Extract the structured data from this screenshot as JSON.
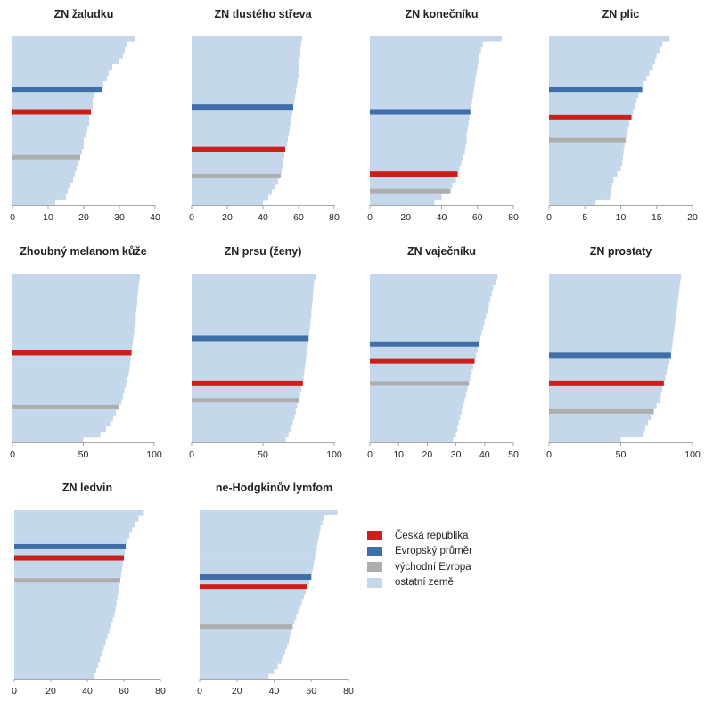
{
  "legend": [
    {
      "label": "Česká republika",
      "color": "#cc1f1a"
    },
    {
      "label": "Evropský průměr",
      "color": "#3f6fa9"
    },
    {
      "label": "východní Evropa",
      "color": "#adadad"
    },
    {
      "label": "ostatní země",
      "color": "#c5d8eb"
    }
  ],
  "chart_data": [
    {
      "type": "bar",
      "title": "ZN žaludku",
      "xlim": [
        0,
        40
      ],
      "ticks": [
        0,
        10,
        20,
        30,
        40
      ],
      "countries": [
        34.5,
        32,
        31.5,
        31,
        30,
        28,
        27,
        26.5,
        25.5,
        24,
        23,
        22.5,
        22.5,
        22,
        21.5,
        21.5,
        21,
        20.5,
        20,
        20,
        19.5,
        19,
        18.5,
        18,
        17.5,
        17,
        16,
        15.5,
        15,
        12
      ],
      "czech": 22,
      "europe": 25,
      "east": 19
    },
    {
      "type": "bar",
      "title": "ZN tlustého střeva",
      "xlim": [
        0,
        80
      ],
      "ticks": [
        0,
        20,
        40,
        60,
        80
      ],
      "countries": [
        62,
        61.5,
        61,
        61,
        60.5,
        60.5,
        60,
        60,
        59.5,
        59,
        58.5,
        58,
        57.5,
        57,
        56.5,
        56,
        55.5,
        55,
        54.5,
        54,
        53.5,
        52.5,
        52,
        51.5,
        51,
        50.5,
        49.5,
        48.5,
        47,
        45,
        43,
        40
      ],
      "czech": 52.5,
      "europe": 57,
      "east": 50
    },
    {
      "type": "bar",
      "title": "ZN konečníku",
      "xlim": [
        0,
        80
      ],
      "ticks": [
        0,
        20,
        40,
        60,
        80
      ],
      "countries": [
        73.5,
        63,
        62,
        61,
        60.5,
        60,
        59.5,
        59,
        58.5,
        58,
        57.5,
        57,
        56.5,
        56,
        55.5,
        55,
        54.5,
        54,
        54,
        53.5,
        53,
        52,
        51,
        50,
        49,
        48,
        46,
        44,
        40,
        36
      ],
      "czech": 49,
      "europe": 56,
      "east": 45
    },
    {
      "type": "bar",
      "title": "ZN plic",
      "xlim": [
        0,
        20
      ],
      "ticks": [
        0,
        5,
        10,
        15,
        20
      ],
      "countries": [
        16.8,
        15.8,
        15.5,
        15,
        14.8,
        14.5,
        14,
        13.6,
        13.2,
        12.8,
        12.5,
        12.2,
        12,
        11.7,
        11.4,
        11.2,
        11,
        10.8,
        10.6,
        10.5,
        10.4,
        10.3,
        10.2,
        10,
        9.5,
        9,
        8.8,
        8.7,
        8.5,
        6.5
      ],
      "czech": 11.5,
      "europe": 13,
      "east": 10.7
    },
    {
      "type": "bar",
      "title": "Zhoubný melanom kůže",
      "xlim": [
        0,
        100
      ],
      "ticks": [
        0,
        50,
        100
      ],
      "countries": [
        90,
        89.5,
        89,
        88.5,
        88,
        88,
        87.5,
        87,
        87,
        86.5,
        86,
        85.5,
        85,
        84.5,
        84,
        83.5,
        83,
        82.5,
        82,
        81,
        80,
        79,
        78,
        77,
        75,
        73,
        71,
        69,
        66,
        62,
        50
      ],
      "czech": 84,
      "europe": 84,
      "east": 75
    },
    {
      "type": "bar",
      "title": "ZN prsu (ženy)",
      "xlim": [
        0,
        100
      ],
      "ticks": [
        0,
        50,
        100
      ],
      "countries": [
        87,
        86,
        85.5,
        85,
        85,
        84.5,
        84,
        84,
        83.5,
        83,
        82.5,
        82,
        81.5,
        81,
        80.5,
        80,
        79.5,
        79,
        78.5,
        78,
        77,
        76,
        75,
        74,
        73,
        72,
        71,
        70,
        68,
        66
      ],
      "czech": 78,
      "europe": 82,
      "east": 75
    },
    {
      "type": "bar",
      "title": "ZN vaječníku",
      "xlim": [
        0,
        50
      ],
      "ticks": [
        0,
        10,
        20,
        30,
        40,
        50
      ],
      "countries": [
        44.5,
        44,
        43,
        42.5,
        42,
        41.5,
        41,
        40.5,
        40,
        39.5,
        39,
        38.5,
        38,
        37.5,
        37,
        36.5,
        36,
        35.5,
        35,
        34.5,
        34,
        33.5,
        33,
        32.5,
        32,
        31.5,
        31,
        30.5,
        30,
        29
      ],
      "czech": 36.5,
      "europe": 38,
      "east": 34.5
    },
    {
      "type": "bar",
      "title": "ZN prostaty",
      "xlim": [
        0,
        100
      ],
      "ticks": [
        0,
        50,
        100
      ],
      "countries": [
        92,
        91.5,
        91,
        90.5,
        90,
        89.5,
        89,
        88.5,
        88,
        87.5,
        87,
        86.5,
        86,
        85.5,
        85,
        84,
        83,
        82,
        81,
        80,
        79,
        78,
        77,
        75,
        73,
        71,
        69,
        67,
        66,
        50
      ],
      "czech": 80,
      "europe": 85,
      "east": 73
    },
    {
      "type": "bar",
      "title": "ZN ledvin",
      "xlim": [
        0,
        80
      ],
      "ticks": [
        0,
        20,
        40,
        60,
        80
      ],
      "countries": [
        71,
        68,
        66,
        64.5,
        63,
        62,
        61,
        60.5,
        60,
        59.5,
        59,
        58.5,
        58,
        57.5,
        57,
        56.5,
        56,
        55.5,
        55,
        54,
        53,
        52,
        51,
        50,
        49,
        48,
        47,
        46,
        45,
        44
      ],
      "czech": 60,
      "europe": 61,
      "east": 58
    },
    {
      "type": "bar",
      "title": "ne-Hodgkinův lymfom",
      "xlim": [
        0,
        80
      ],
      "ticks": [
        0,
        20,
        40,
        60,
        80
      ],
      "countries": [
        74,
        67,
        66,
        65,
        64.5,
        64,
        63.5,
        63,
        62.5,
        62,
        61.5,
        61,
        60.5,
        60,
        59,
        58,
        57,
        56,
        55,
        54,
        53,
        52,
        51,
        50,
        49,
        48.5,
        48,
        47,
        46,
        45,
        44,
        42,
        40,
        37
      ],
      "czech": 58,
      "europe": 60,
      "east": 50
    }
  ]
}
